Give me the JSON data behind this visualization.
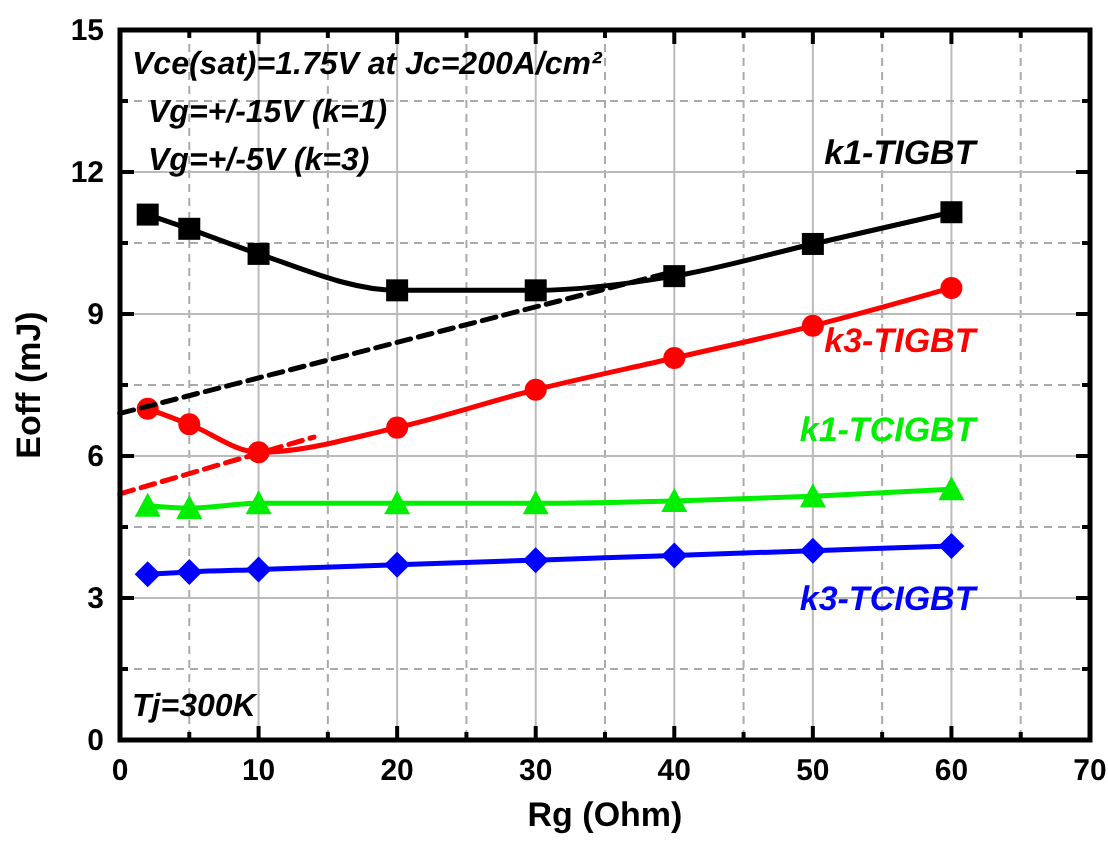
{
  "chart_data": {
    "type": "line",
    "xlabel": "Rg (Ohm)",
    "ylabel": "Eoff (mJ)",
    "xlim": [
      0,
      70
    ],
    "ylim": [
      0,
      15
    ],
    "xticks": [
      0,
      {
        "value": 5,
        "label": null
      },
      10,
      {
        "value": 15,
        "label": null
      },
      20,
      {
        "value": 25,
        "label": null
      },
      30,
      {
        "value": 35,
        "label": null
      },
      40,
      {
        "value": 45,
        "label": null
      },
      50,
      {
        "value": 55,
        "label": null
      },
      60,
      {
        "value": 65,
        "label": null
      },
      70
    ],
    "yticks": [
      0,
      {
        "value": 1.5,
        "label": null
      },
      3,
      {
        "value": 4.5,
        "label": null
      },
      6,
      {
        "value": 7.5,
        "label": null
      },
      9,
      {
        "value": 10.5,
        "label": null
      },
      12,
      {
        "value": 13.5,
        "label": null
      },
      15
    ],
    "grid": true,
    "annotations": [
      "Vce(sat)=1.75V at Jc=200A/cm²",
      "Vg=+/-15V (k=1)",
      "Vg=+/-5V (k=3)",
      "Tj=300K"
    ],
    "series": [
      {
        "name": "k1-TIGBT",
        "color": "#000000",
        "marker": "square",
        "x": [
          2,
          5,
          10,
          20,
          30,
          40,
          50,
          60
        ],
        "values": [
          11.1,
          10.8,
          10.27,
          9.5,
          9.5,
          9.8,
          10.48,
          11.15
        ]
      },
      {
        "name": "k3-TIGBT",
        "color": "#ff0000",
        "marker": "circle",
        "x": [
          2,
          5,
          10,
          20,
          30,
          40,
          50,
          60
        ],
        "values": [
          7.0,
          6.67,
          6.08,
          6.6,
          7.4,
          8.07,
          8.75,
          9.55
        ]
      },
      {
        "name": "k1-TCIGBT",
        "color": "#00ee00",
        "marker": "triangle",
        "x": [
          2,
          5,
          10,
          20,
          30,
          40,
          50,
          60
        ],
        "values": [
          4.95,
          4.9,
          5.0,
          5.0,
          5.0,
          5.05,
          5.15,
          5.3
        ]
      },
      {
        "name": "k3-TCIGBT",
        "color": "#0000ff",
        "marker": "diamond",
        "x": [
          2,
          5,
          10,
          20,
          30,
          40,
          50,
          60
        ],
        "values": [
          3.5,
          3.55,
          3.6,
          3.7,
          3.8,
          3.9,
          4.0,
          4.1
        ]
      },
      {
        "color": "#000000",
        "marker": "none",
        "line_style": "dashed",
        "x": [
          0,
          40
        ],
        "values": [
          6.9,
          9.9
        ]
      },
      {
        "color": "#ff0000",
        "marker": "none",
        "line_style": "dashed",
        "x": [
          0,
          14
        ],
        "values": [
          5.2,
          6.4
        ]
      }
    ]
  }
}
